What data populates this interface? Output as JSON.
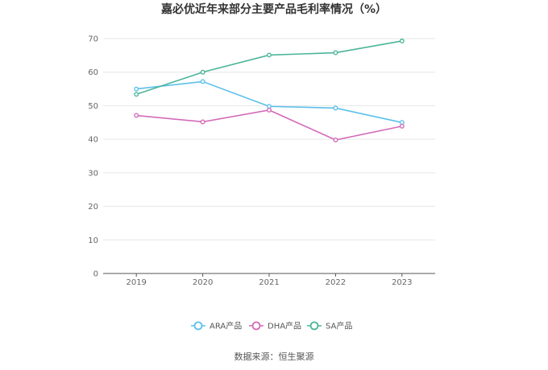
{
  "chart_data": {
    "type": "line",
    "title": "嘉必优近年来部分主要产品毛利率情况（%）",
    "categories": [
      "2019",
      "2020",
      "2021",
      "2022",
      "2023"
    ],
    "ylim": [
      0,
      70
    ],
    "yticks": [
      0,
      10,
      20,
      30,
      40,
      50,
      60,
      70
    ],
    "grid": true,
    "legend_position": "bottom",
    "series": [
      {
        "name": "ARA产品",
        "color": "#5bc0eb",
        "values": [
          55.0,
          57.2,
          49.8,
          49.3,
          45.0
        ]
      },
      {
        "name": "DHA产品",
        "color": "#d36bb8",
        "values": [
          47.1,
          45.2,
          48.7,
          39.8,
          43.9
        ]
      },
      {
        "name": "SA产品",
        "color": "#4cb59a",
        "values": [
          53.4,
          60.0,
          65.1,
          65.8,
          69.3
        ]
      }
    ]
  },
  "source": "数据来源：恒生聚源"
}
